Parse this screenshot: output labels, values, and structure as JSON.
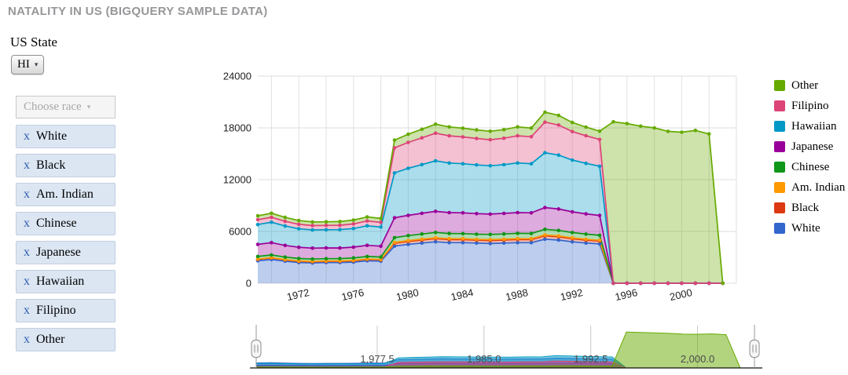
{
  "page": {
    "title": "NATALITY IN US (BIGQUERY SAMPLE DATA)"
  },
  "state_filter": {
    "label": "US State",
    "selected": "HI"
  },
  "race_filter": {
    "placeholder": "Choose race",
    "remove_symbol": "x",
    "selected_races": [
      "White",
      "Black",
      "Am. Indian",
      "Chinese",
      "Japanese",
      "Hawaiian",
      "Filipino",
      "Other"
    ]
  },
  "chart_data": {
    "type": "area",
    "stacked": true,
    "title": "",
    "xlabel": "",
    "ylabel": "",
    "ylim": [
      0,
      24000
    ],
    "yticks": [
      0,
      6000,
      12000,
      18000,
      24000
    ],
    "xticks": [
      1972,
      1976,
      1980,
      1984,
      1988,
      1992,
      1996,
      2000
    ],
    "grid": true,
    "legend_position": "right",
    "legend_top_to_bottom": [
      "Other",
      "Filipino",
      "Hawaiian",
      "Japanese",
      "Chinese",
      "Am. Indian",
      "Black",
      "White"
    ],
    "x_years": [
      1969,
      1970,
      1971,
      1972,
      1973,
      1974,
      1975,
      1976,
      1977,
      1978,
      1979,
      1980,
      1981,
      1982,
      1983,
      1984,
      1985,
      1986,
      1987,
      1988,
      1989,
      1990,
      1991,
      1992,
      1993,
      1994,
      1995,
      1996,
      1997,
      1998,
      1999,
      2000,
      2001,
      2002,
      2003
    ],
    "series": [
      {
        "name": "White",
        "color": "#3366CC",
        "values": [
          2600,
          2750,
          2550,
          2400,
          2350,
          2400,
          2400,
          2450,
          2600,
          2550,
          4300,
          4500,
          4650,
          4800,
          4700,
          4700,
          4650,
          4600,
          4650,
          4700,
          4700,
          5100,
          5000,
          4800,
          4650,
          4550,
          0,
          0,
          0,
          0,
          0,
          0,
          0,
          0,
          0
        ]
      },
      {
        "name": "Black",
        "color": "#DC3912",
        "values": [
          160,
          170,
          150,
          140,
          140,
          140,
          140,
          150,
          160,
          150,
          330,
          340,
          350,
          360,
          350,
          350,
          340,
          350,
          350,
          360,
          350,
          380,
          370,
          350,
          340,
          330,
          0,
          0,
          0,
          0,
          0,
          0,
          0,
          0,
          0
        ]
      },
      {
        "name": "Am. Indian",
        "color": "#FF9900",
        "values": [
          40,
          40,
          40,
          40,
          40,
          40,
          40,
          45,
          45,
          45,
          90,
          95,
          100,
          100,
          100,
          100,
          95,
          100,
          100,
          105,
          100,
          115,
          110,
          105,
          100,
          95,
          0,
          0,
          0,
          0,
          0,
          0,
          0,
          0,
          0
        ]
      },
      {
        "name": "Chinese",
        "color": "#109618",
        "values": [
          300,
          310,
          290,
          280,
          270,
          270,
          275,
          285,
          295,
          290,
          560,
          580,
          600,
          620,
          610,
          600,
          595,
          600,
          610,
          620,
          610,
          650,
          640,
          620,
          600,
          580,
          0,
          0,
          0,
          0,
          0,
          0,
          0,
          0,
          0
        ]
      },
      {
        "name": "Japanese",
        "color": "#990099",
        "values": [
          1400,
          1430,
          1350,
          1300,
          1260,
          1240,
          1230,
          1250,
          1290,
          1260,
          2300,
          2350,
          2400,
          2450,
          2420,
          2400,
          2380,
          2360,
          2380,
          2400,
          2390,
          2520,
          2480,
          2400,
          2350,
          2300,
          0,
          0,
          0,
          0,
          0,
          0,
          0,
          0,
          0
        ]
      },
      {
        "name": "Hawaiian",
        "color": "#0099C6",
        "values": [
          2300,
          2360,
          2250,
          2150,
          2110,
          2100,
          2120,
          2160,
          2260,
          2210,
          5200,
          5450,
          5650,
          5850,
          5750,
          5700,
          5650,
          5600,
          5650,
          5750,
          5700,
          6350,
          6250,
          6000,
          5850,
          5700,
          0,
          0,
          0,
          0,
          0,
          0,
          0,
          0,
          0
        ]
      },
      {
        "name": "Filipino",
        "color": "#DD4477",
        "values": [
          560,
          580,
          545,
          520,
          510,
          510,
          515,
          535,
          565,
          550,
          2900,
          3000,
          3100,
          3200,
          3150,
          3100,
          3060,
          3020,
          3060,
          3150,
          3120,
          3550,
          3480,
          3300,
          3200,
          3100,
          0,
          0,
          0,
          0,
          0,
          0,
          0,
          0,
          0
        ]
      },
      {
        "name": "Other",
        "color": "#66AA00",
        "values": [
          450,
          470,
          455,
          430,
          420,
          420,
          425,
          445,
          465,
          455,
          900,
          950,
          1000,
          1050,
          1030,
          1010,
          990,
          980,
          1000,
          1030,
          1010,
          1150,
          1120,
          1050,
          1000,
          960,
          18700,
          18500,
          18200,
          18000,
          17600,
          17500,
          17700,
          17300,
          0
        ]
      }
    ],
    "range_selector": {
      "ticks": [
        1977.5,
        1985.0,
        1992.5,
        2000.0
      ],
      "tick_labels": [
        "1,977.5",
        "1,985.0",
        "1,992.5",
        "2,000.0"
      ]
    }
  }
}
